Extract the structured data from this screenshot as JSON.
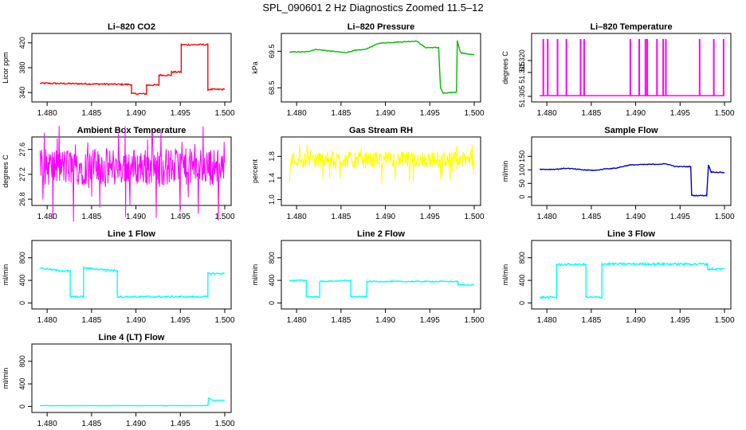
{
  "page_title": "SPL_090601  2 Hz Diagnostics Zoomed 11.5–12",
  "chart_data": [
    {
      "type": "line",
      "title": "Li–820 CO2",
      "ylabel": "Licor ppm",
      "color": "#ff0000",
      "xlim": [
        1.479,
        1.5
      ],
      "ylim": [
        330,
        430
      ],
      "yticks": [
        "340",
        "380",
        "420"
      ],
      "xticks": [
        "1.480",
        "1.485",
        "1.490",
        "1.495",
        "1.500"
      ],
      "noise": 1.2,
      "x": [
        1.4792,
        1.4895,
        1.4895,
        1.4912,
        1.4912,
        1.4926,
        1.4926,
        1.494,
        1.494,
        1.4951,
        1.4951,
        1.4981,
        1.4981,
        1.5
      ],
      "y": [
        355,
        353,
        338,
        338,
        352,
        352,
        368,
        368,
        373,
        373,
        417,
        417,
        345,
        345
      ]
    },
    {
      "type": "line",
      "title": "Li–820 Pressure",
      "ylabel": "kPa",
      "color": "#00bb00",
      "xlim": [
        1.479,
        1.5
      ],
      "ylim": [
        68.2,
        69.9
      ],
      "yticks": [
        "68.5",
        "69.5"
      ],
      "xticks": [
        "1.480",
        "1.485",
        "1.490",
        "1.495",
        "1.500"
      ],
      "noise": 0.01,
      "x": [
        1.4792,
        1.481,
        1.4822,
        1.484,
        1.4855,
        1.4865,
        1.4877,
        1.4893,
        1.4935,
        1.4945,
        1.496,
        1.4962,
        1.4965,
        1.498,
        1.4981,
        1.4984,
        1.4986,
        1.5
      ],
      "y": [
        69.48,
        69.48,
        69.55,
        69.5,
        69.46,
        69.52,
        69.55,
        69.72,
        69.78,
        69.6,
        69.6,
        68.5,
        68.35,
        68.38,
        69.8,
        69.5,
        69.45,
        69.4
      ]
    },
    {
      "type": "spikes",
      "title": "Li–820 Temperature",
      "ylabel": "degrees C",
      "color": "#ff00ff",
      "xlim": [
        1.479,
        1.5
      ],
      "ylim": [
        51.304,
        51.33
      ],
      "yticks": [
        "51.305",
        "51.315",
        "51.320"
      ],
      "xticks": [
        "1.480",
        "1.485",
        "1.490",
        "1.495",
        "1.500"
      ],
      "baseline": 51.3053,
      "spike_top": 51.329,
      "spikes": [
        1.4796,
        1.4801,
        1.4812,
        1.4822,
        1.4838,
        1.4842,
        1.4894,
        1.4904,
        1.4911,
        1.4913,
        1.4924,
        1.4931,
        1.4934,
        1.4972,
        1.4988,
        1.4999
      ]
    },
    {
      "type": "noise",
      "title": "Ambient Box Temperature",
      "ylabel": "degrees C",
      "color": "#ff00ff",
      "xlim": [
        1.479,
        1.5
      ],
      "ylim": [
        26.75,
        27.75
      ],
      "yticks": [
        "26.8",
        "27.2",
        "27.6"
      ],
      "xticks": [
        "1.480",
        "1.485",
        "1.490",
        "1.495",
        "1.500"
      ],
      "center": 27.32,
      "amplitude": 0.3
    },
    {
      "type": "noise",
      "title": "Gas Stream RH",
      "ylabel": "percent",
      "color": "#ffff00",
      "xlim": [
        1.479,
        1.5
      ],
      "ylim": [
        0.95,
        2.1
      ],
      "yticks": [
        "1.0",
        "1.4",
        "1.8"
      ],
      "xticks": [
        "1.480",
        "1.485",
        "1.490",
        "1.495",
        "1.500"
      ],
      "center": 1.74,
      "amplitude": 0.15
    },
    {
      "type": "line",
      "title": "Sample Flow",
      "ylabel": "ml/min",
      "color": "#0000cc",
      "xlim": [
        1.479,
        1.5
      ],
      "ylim": [
        -20,
        210
      ],
      "yticks": [
        "0",
        "50",
        "100",
        "150"
      ],
      "xticks": [
        "1.480",
        "1.485",
        "1.490",
        "1.495",
        "1.500"
      ],
      "noise": 1.5,
      "x": [
        1.4792,
        1.481,
        1.4822,
        1.484,
        1.4855,
        1.4866,
        1.4877,
        1.4893,
        1.4935,
        1.4945,
        1.4962,
        1.4963,
        1.4978,
        1.498,
        1.4982,
        1.4985,
        1.5
      ],
      "y": [
        102,
        102,
        106,
        100,
        98,
        104,
        106,
        118,
        122,
        112,
        112,
        5,
        5,
        5,
        118,
        92,
        90
      ]
    },
    {
      "type": "line",
      "title": "Line 1 Flow",
      "ylabel": "ml/min",
      "color": "#00ffff",
      "xlim": [
        1.479,
        1.5
      ],
      "ylim": [
        -50,
        1050
      ],
      "yticks": [
        "0",
        "400",
        "800"
      ],
      "xticks": [
        "1.480",
        "1.485",
        "1.490",
        "1.495",
        "1.500"
      ],
      "noise": 15,
      "x": [
        1.4792,
        1.481,
        1.4826,
        1.4826,
        1.4841,
        1.4841,
        1.4856,
        1.4873,
        1.4879,
        1.4879,
        1.4981,
        1.4981,
        1.5
      ],
      "y": [
        620,
        580,
        560,
        110,
        110,
        620,
        600,
        580,
        580,
        110,
        110,
        520,
        520
      ]
    },
    {
      "type": "line",
      "title": "Line 2 Flow",
      "ylabel": "ml/min",
      "color": "#00ffff",
      "xlim": [
        1.479,
        1.5
      ],
      "ylim": [
        -50,
        1050
      ],
      "yticks": [
        "0",
        "400",
        "800"
      ],
      "xticks": [
        "1.480",
        "1.485",
        "1.490",
        "1.495",
        "1.500"
      ],
      "noise": 10,
      "x": [
        1.4792,
        1.4811,
        1.4811,
        1.4826,
        1.4826,
        1.4861,
        1.4861,
        1.4879,
        1.4879,
        1.4982,
        1.4982,
        1.5
      ],
      "y": [
        400,
        400,
        110,
        110,
        380,
        400,
        110,
        110,
        380,
        380,
        320,
        320
      ]
    },
    {
      "type": "line",
      "title": "Line 3 Flow",
      "ylabel": "ml/min",
      "color": "#00ffff",
      "xlim": [
        1.479,
        1.5
      ],
      "ylim": [
        -50,
        1050
      ],
      "yticks": [
        "0",
        "400",
        "800"
      ],
      "xticks": [
        "1.480",
        "1.485",
        "1.490",
        "1.495",
        "1.500"
      ],
      "noise": 18,
      "x": [
        1.4792,
        1.481,
        1.4811,
        1.4811,
        1.4844,
        1.4844,
        1.4862,
        1.4862,
        1.4981,
        1.4981,
        1.5
      ],
      "y": [
        100,
        100,
        100,
        680,
        680,
        100,
        100,
        690,
        690,
        600,
        600
      ]
    },
    {
      "type": "line",
      "title": "Line 4 (LT) Flow",
      "ylabel": "ml/min",
      "color": "#00ffff",
      "xlim": [
        1.479,
        1.5
      ],
      "ylim": [
        -50,
        1050
      ],
      "yticks": [
        "0",
        "400",
        "800"
      ],
      "xticks": [
        "1.480",
        "1.485",
        "1.490",
        "1.495",
        "1.500"
      ],
      "noise": 2,
      "x": [
        1.4792,
        1.4981,
        1.4982,
        1.4986,
        1.5
      ],
      "y": [
        15,
        15,
        150,
        110,
        110
      ]
    }
  ]
}
